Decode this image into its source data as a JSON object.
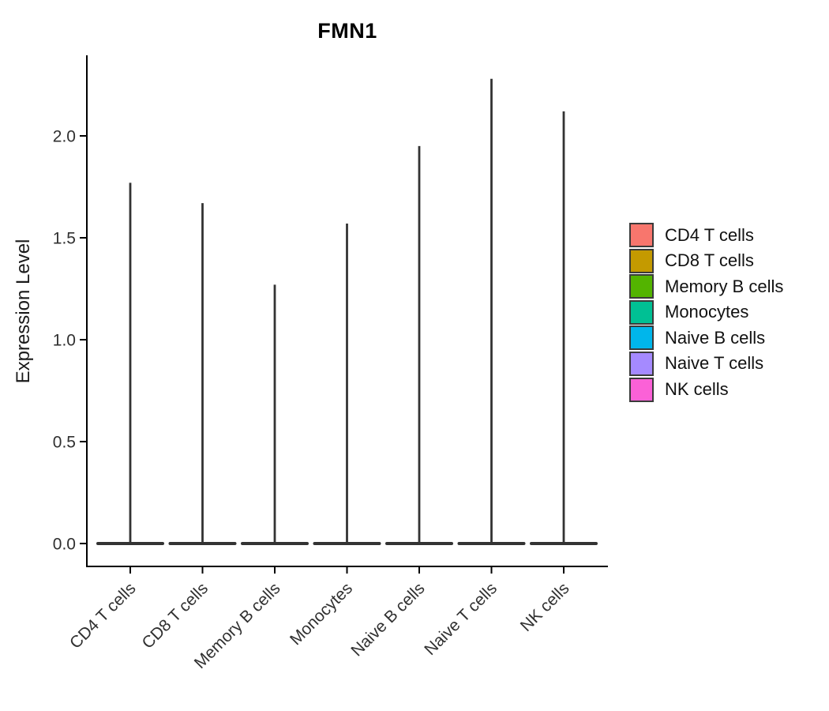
{
  "chart_data": {
    "type": "violin",
    "title": "FMN1",
    "xlabel": "",
    "ylabel": "Expression Level",
    "legend_position": "right",
    "grid": false,
    "description": "Seurat-style single-gene violin plot; each violin is collapsed at 0 expression with a thin spike up to the maximum expression value",
    "categories": [
      "CD4 T cells",
      "CD8 T cells",
      "Memory B cells",
      "Monocytes",
      "Naive B cells",
      "Naive T cells",
      "NK cells"
    ],
    "series": [
      {
        "name": "max expression spike",
        "values": [
          1.77,
          1.67,
          1.27,
          1.57,
          1.95,
          2.28,
          2.12
        ]
      }
    ],
    "bulk_at_zero": [
      0,
      0,
      0,
      0,
      0,
      0,
      0
    ],
    "yticks": [
      0.0,
      0.5,
      1.0,
      1.5,
      2.0
    ],
    "ytick_labels": [
      "0.0",
      "0.5",
      "1.0",
      "1.5",
      "2.0"
    ],
    "ylim": [
      -0.11,
      2.4
    ],
    "legend": [
      {
        "label": "CD4 T cells",
        "color": "#F8766D"
      },
      {
        "label": "CD8 T cells",
        "color": "#C49A00"
      },
      {
        "label": "Memory B cells",
        "color": "#53B400"
      },
      {
        "label": "Monocytes",
        "color": "#00C094"
      },
      {
        "label": "Naive B cells",
        "color": "#00B6EB"
      },
      {
        "label": "Naive T cells",
        "color": "#A58AFF"
      },
      {
        "label": "NK cells",
        "color": "#FB61D7"
      }
    ],
    "colors": {
      "axis": "#000000",
      "tick_label": "#303030",
      "violin_outline": "#333333",
      "legend_swatch_border": "#3a3a3a",
      "title": "#000000"
    }
  }
}
